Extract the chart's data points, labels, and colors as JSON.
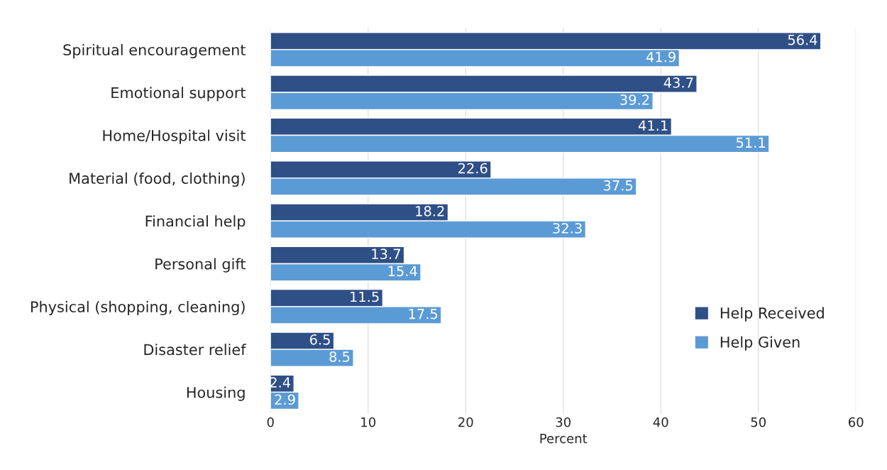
{
  "chart_data": {
    "type": "bar",
    "orientation": "horizontal",
    "xlabel": "Percent",
    "categories": [
      "Spiritual encouragement",
      "Emotional support",
      "Home/Hospital visit",
      "Material (food, clothing)",
      "Financial help",
      "Personal gift",
      "Physical (shopping, cleaning)",
      "Disaster relief",
      "Housing"
    ],
    "series": [
      {
        "name": "Help Received",
        "color": "#2f4f87",
        "values": [
          56.4,
          43.7,
          41.1,
          22.6,
          18.2,
          13.7,
          11.5,
          6.5,
          2.4
        ]
      },
      {
        "name": "Help Given",
        "color": "#5b9bd5",
        "values": [
          41.9,
          39.2,
          51.1,
          37.5,
          32.3,
          15.4,
          17.5,
          8.5,
          2.9
        ]
      }
    ],
    "xlim": [
      0,
      60
    ],
    "xticks": [
      0,
      10,
      20,
      30,
      40,
      50,
      60
    ],
    "grid": "x",
    "legend": "right",
    "data_labels": true
  }
}
